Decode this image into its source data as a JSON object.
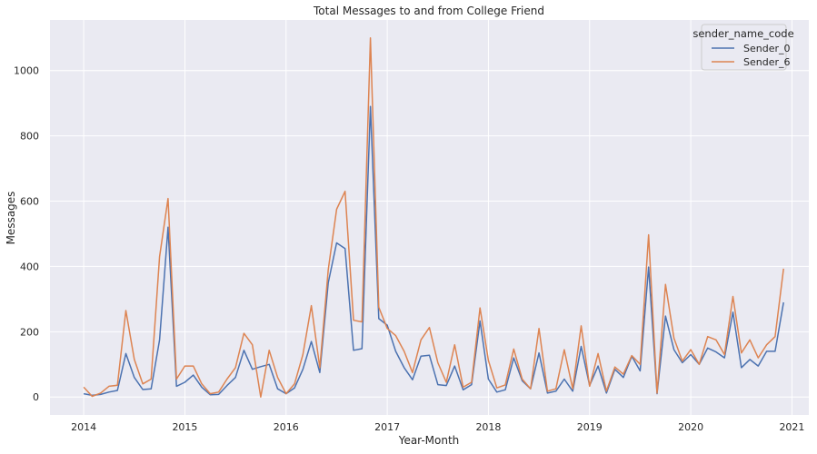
{
  "chart_data": {
    "type": "line",
    "title": "Total Messages to and from College Friend",
    "xlabel": "Year-Month",
    "ylabel": "Messages",
    "x_tick_labels": [
      "2014",
      "2015",
      "2016",
      "2017",
      "2018",
      "2019",
      "2020",
      "2021"
    ],
    "y_ticks": [
      0,
      200,
      400,
      600,
      800,
      1000
    ],
    "xlim": [
      "2013-09",
      "2021-03"
    ],
    "ylim": [
      -55,
      1155
    ],
    "grid": true,
    "background": "#eaeaf2",
    "legend": {
      "title": "sender_name_code",
      "placement": "top-right"
    },
    "x": [
      "2014-01",
      "2014-02",
      "2014-03",
      "2014-04",
      "2014-05",
      "2014-06",
      "2014-07",
      "2014-08",
      "2014-09",
      "2014-10",
      "2014-11",
      "2014-12",
      "2015-01",
      "2015-02",
      "2015-03",
      "2015-04",
      "2015-05",
      "2015-06",
      "2015-07",
      "2015-08",
      "2015-09",
      "2015-10",
      "2015-11",
      "2015-12",
      "2016-01",
      "2016-02",
      "2016-03",
      "2016-04",
      "2016-05",
      "2016-06",
      "2016-07",
      "2016-08",
      "2016-09",
      "2016-10",
      "2016-11",
      "2016-12",
      "2017-01",
      "2017-02",
      "2017-03",
      "2017-04",
      "2017-05",
      "2017-06",
      "2017-07",
      "2017-08",
      "2017-09",
      "2017-10",
      "2017-11",
      "2017-12",
      "2018-01",
      "2018-02",
      "2018-03",
      "2018-04",
      "2018-05",
      "2018-06",
      "2018-07",
      "2018-08",
      "2018-09",
      "2018-10",
      "2018-11",
      "2018-12",
      "2019-01",
      "2019-02",
      "2019-03",
      "2019-04",
      "2019-05",
      "2019-06",
      "2019-07",
      "2019-08",
      "2019-09",
      "2019-10",
      "2019-11",
      "2019-12",
      "2020-01",
      "2020-02",
      "2020-03",
      "2020-04",
      "2020-05",
      "2020-06",
      "2020-07",
      "2020-08",
      "2020-09",
      "2020-10",
      "2020-11",
      "2020-12"
    ],
    "series": [
      {
        "name": "Sender_0",
        "color": "#4c72b0",
        "values": [
          10,
          5,
          8,
          15,
          20,
          133,
          60,
          23,
          25,
          175,
          520,
          33,
          45,
          67,
          30,
          7,
          8,
          35,
          60,
          143,
          85,
          93,
          100,
          25,
          10,
          28,
          85,
          170,
          75,
          350,
          472,
          455,
          143,
          148,
          890,
          240,
          220,
          140,
          90,
          53,
          125,
          128,
          38,
          35,
          95,
          22,
          38,
          233,
          55,
          15,
          22,
          120,
          50,
          25,
          135,
          12,
          18,
          55,
          18,
          155,
          35,
          95,
          12,
          85,
          60,
          125,
          80,
          398,
          10,
          248,
          145,
          105,
          130,
          100,
          150,
          138,
          120,
          260,
          90,
          115,
          95,
          140,
          140,
          290
        ]
      },
      {
        "name": "Sender_6",
        "color": "#dd8452",
        "values": [
          30,
          2,
          12,
          33,
          36,
          265,
          115,
          40,
          55,
          430,
          608,
          55,
          95,
          95,
          40,
          10,
          15,
          55,
          90,
          195,
          160,
          0,
          143,
          60,
          10,
          40,
          130,
          280,
          90,
          390,
          575,
          630,
          235,
          230,
          1100,
          275,
          210,
          188,
          140,
          75,
          175,
          213,
          105,
          45,
          160,
          30,
          45,
          273,
          112,
          28,
          37,
          147,
          55,
          25,
          210,
          18,
          25,
          145,
          25,
          218,
          33,
          133,
          18,
          92,
          70,
          127,
          100,
          497,
          12,
          345,
          180,
          110,
          145,
          100,
          185,
          175,
          130,
          308,
          135,
          175,
          120,
          160,
          185,
          393
        ]
      }
    ]
  }
}
